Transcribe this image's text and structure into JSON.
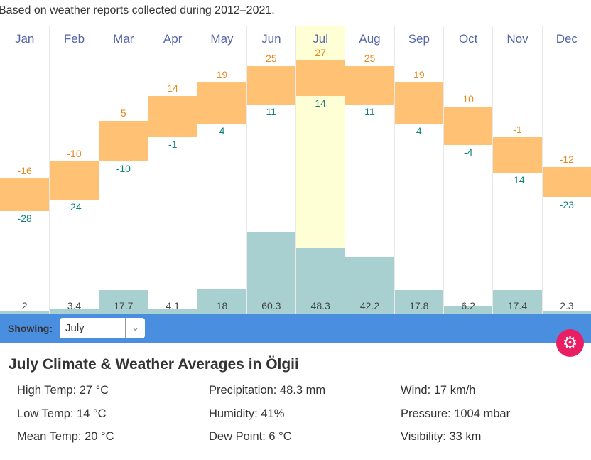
{
  "note": "Based on weather reports collected during 2012–2021.",
  "selected_index": 6,
  "months": [
    {
      "name": "Jan",
      "high": -16,
      "low": -28,
      "precip": 2,
      "precip_label": "2"
    },
    {
      "name": "Feb",
      "high": -10,
      "low": -24,
      "precip": 3.4,
      "precip_label": "3.4"
    },
    {
      "name": "Mar",
      "high": 5,
      "low": -10,
      "precip": 17.7,
      "precip_label": "17.7"
    },
    {
      "name": "Apr",
      "high": 14,
      "low": -1,
      "precip": 4.1,
      "precip_label": "4.1"
    },
    {
      "name": "May",
      "high": 19,
      "low": 4,
      "precip": 18,
      "precip_label": "18"
    },
    {
      "name": "Jun",
      "high": 25,
      "low": 11,
      "precip": 60.3,
      "precip_label": "60.3"
    },
    {
      "name": "Jul",
      "high": 27,
      "low": 14,
      "precip": 48.3,
      "precip_label": "48.3"
    },
    {
      "name": "Aug",
      "high": 25,
      "low": 11,
      "precip": 42.2,
      "precip_label": "42.2"
    },
    {
      "name": "Sep",
      "high": 19,
      "low": 4,
      "precip": 17.8,
      "precip_label": "17.8"
    },
    {
      "name": "Oct",
      "high": 10,
      "low": -4,
      "precip": 6.2,
      "precip_label": "6.2"
    },
    {
      "name": "Nov",
      "high": -1,
      "low": -14,
      "precip": 17.4,
      "precip_label": "17.4"
    },
    {
      "name": "Dec",
      "high": -12,
      "low": -23,
      "precip": 2.3,
      "precip_label": "2.3"
    }
  ],
  "showing": {
    "label": "Showing:",
    "value": "July"
  },
  "settings_icon": "gear-icon",
  "details": {
    "title": "July Climate & Weather Averages in Ölgii",
    "stats": [
      "High Temp: 27 °C",
      "Precipitation: 48.3 mm",
      "Wind: 17 km/h",
      "Low Temp: 14 °C",
      "Humidity: 41%",
      "Pressure: 1004 mbar",
      "Mean Temp: 20 °C",
      "Dew Point: 6 °C",
      "Visibility: 33 km"
    ]
  },
  "colors": {
    "high": "#e8871e",
    "low": "#11807a",
    "temp_bar": "#ffc174",
    "precip_bar": "#a8d0d0",
    "toolbar": "#4a8ee0",
    "gear": "#e91e63"
  }
}
